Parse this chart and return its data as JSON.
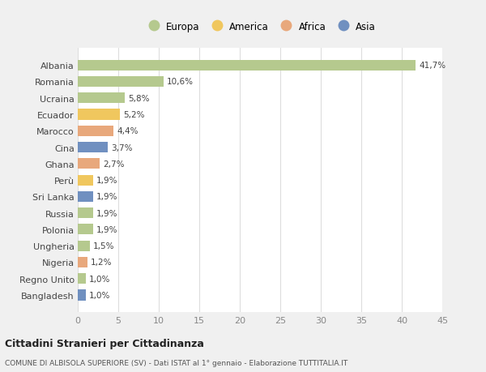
{
  "countries": [
    "Albania",
    "Romania",
    "Ucraina",
    "Ecuador",
    "Marocco",
    "Cina",
    "Ghana",
    "Perù",
    "Sri Lanka",
    "Russia",
    "Polonia",
    "Ungheria",
    "Nigeria",
    "Regno Unito",
    "Bangladesh"
  ],
  "values": [
    41.7,
    10.6,
    5.8,
    5.2,
    4.4,
    3.7,
    2.7,
    1.9,
    1.9,
    1.9,
    1.9,
    1.5,
    1.2,
    1.0,
    1.0
  ],
  "labels": [
    "41,7%",
    "10,6%",
    "5,8%",
    "5,2%",
    "4,4%",
    "3,7%",
    "2,7%",
    "1,9%",
    "1,9%",
    "1,9%",
    "1,9%",
    "1,5%",
    "1,2%",
    "1,0%",
    "1,0%"
  ],
  "continents": [
    "Europa",
    "Europa",
    "Europa",
    "America",
    "Africa",
    "Asia",
    "Africa",
    "America",
    "Asia",
    "Europa",
    "Europa",
    "Europa",
    "Africa",
    "Europa",
    "Asia"
  ],
  "colors": {
    "Europa": "#b5c98e",
    "America": "#f0c75e",
    "Africa": "#e8a87c",
    "Asia": "#7090c0"
  },
  "xlim": [
    0,
    45
  ],
  "xticks": [
    0,
    5,
    10,
    15,
    20,
    25,
    30,
    35,
    40,
    45
  ],
  "title": "Cittadini Stranieri per Cittadinanza",
  "subtitle": "COMUNE DI ALBISOLA SUPERIORE (SV) - Dati ISTAT al 1° gennaio - Elaborazione TUTTITALIA.IT",
  "background_color": "#f0f0f0",
  "plot_bg_color": "#ffffff"
}
